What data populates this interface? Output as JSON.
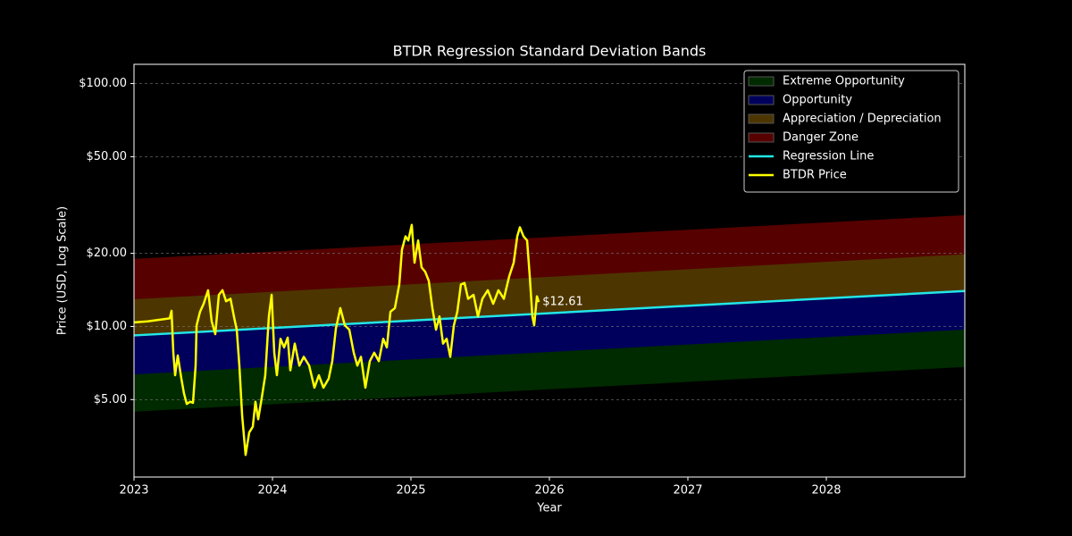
{
  "chart_data": {
    "type": "line",
    "title": "BTDR Regression Standard Deviation Bands",
    "x_label": "Year",
    "y_label": "Price (USD, Log Scale)",
    "xlim": [
      2023,
      2029
    ],
    "xticks": [
      2023,
      2024,
      2025,
      2026,
      2027,
      2028
    ],
    "ylim": [
      2.4,
      120
    ],
    "y_log": true,
    "yticks": [
      {
        "value": 5,
        "label": "$5.00"
      },
      {
        "value": 10,
        "label": "$10.00"
      },
      {
        "value": 20,
        "label": "$20.00"
      },
      {
        "value": 50,
        "label": "$50.00"
      },
      {
        "value": 100,
        "label": "$100.00"
      }
    ],
    "grid": true,
    "legend": "upper right",
    "bands": [
      {
        "name": "Extreme Opportunity",
        "color": "#002a00",
        "x": [
          2023,
          2029
        ],
        "lower": [
          4.48,
          6.84
        ],
        "upper": [
          6.38,
          9.75
        ]
      },
      {
        "name": "Opportunity",
        "color": "#00005c",
        "x": [
          2023,
          2029
        ],
        "lower": [
          6.38,
          9.75
        ],
        "upper": [
          9.19,
          14.0
        ]
      },
      {
        "name": "Appreciation / Depreciation",
        "color": "#4d3500",
        "x": [
          2023,
          2029
        ],
        "lower": [
          9.19,
          14.0
        ],
        "upper": [
          13.0,
          19.9
        ]
      },
      {
        "name": "Danger Zone",
        "color": "#560000",
        "x": [
          2023,
          2029
        ],
        "lower": [
          13.0,
          19.9
        ],
        "upper": [
          18.9,
          28.6
        ]
      }
    ],
    "series": [
      {
        "name": "Regression Line",
        "color": "#22e6e6",
        "x": [
          2023,
          2029
        ],
        "values": [
          9.19,
          14.0
        ]
      },
      {
        "name": "BTDR Price",
        "color": "#ffff00",
        "x": [
          2023.0,
          2023.097,
          2023.258,
          2023.271,
          2023.284,
          2023.297,
          2023.316,
          2023.342,
          2023.361,
          2023.381,
          2023.406,
          2023.426,
          2023.445,
          2023.452,
          2023.477,
          2023.503,
          2023.535,
          2023.561,
          2023.587,
          2023.613,
          2023.639,
          2023.665,
          2023.697,
          2023.723,
          2023.742,
          2023.761,
          2023.781,
          2023.806,
          2023.832,
          2023.858,
          2023.877,
          2023.897,
          2023.923,
          2023.948,
          2023.974,
          2023.994,
          2024.013,
          2024.032,
          2024.058,
          2024.084,
          2024.11,
          2024.129,
          2024.161,
          2024.194,
          2024.226,
          2024.265,
          2024.303,
          2024.335,
          2024.368,
          2024.406,
          2024.432,
          2024.458,
          2024.49,
          2024.523,
          2024.555,
          2024.587,
          2024.613,
          2024.639,
          2024.671,
          2024.703,
          2024.735,
          2024.768,
          2024.8,
          2024.826,
          2024.852,
          2024.884,
          2024.916,
          2024.935,
          2024.961,
          2024.981,
          2025.006,
          2025.026,
          2025.052,
          2025.077,
          2025.103,
          2025.129,
          2025.155,
          2025.181,
          2025.206,
          2025.232,
          2025.258,
          2025.284,
          2025.31,
          2025.335,
          2025.361,
          2025.387,
          2025.413,
          2025.452,
          2025.484,
          2025.516,
          2025.555,
          2025.594,
          2025.632,
          2025.671,
          2025.71,
          2025.742,
          2025.768,
          2025.787,
          2025.813,
          2025.839,
          2025.858,
          2025.877,
          2025.89,
          2025.91,
          2025.923
        ],
        "values": [
          10.4,
          10.5,
          10.8,
          11.6,
          7.8,
          6.3,
          7.6,
          6.1,
          5.3,
          4.8,
          4.9,
          4.85,
          6.9,
          10.1,
          11.5,
          12.4,
          14.1,
          10.5,
          9.3,
          13.5,
          14.1,
          12.7,
          13.0,
          10.9,
          9.7,
          6.9,
          4.3,
          2.96,
          3.66,
          3.87,
          4.9,
          4.15,
          5.1,
          6.3,
          11.0,
          13.5,
          7.8,
          6.3,
          8.9,
          8.2,
          9.0,
          6.6,
          8.5,
          6.9,
          7.5,
          6.9,
          5.6,
          6.3,
          5.6,
          6.1,
          7.2,
          9.8,
          11.9,
          10.1,
          9.7,
          7.8,
          6.9,
          7.5,
          5.6,
          7.2,
          7.8,
          7.2,
          8.9,
          8.2,
          11.5,
          11.9,
          14.9,
          20.7,
          23.5,
          22.6,
          26.2,
          18.3,
          22.6,
          17.5,
          16.8,
          15.4,
          11.9,
          9.7,
          11.0,
          8.5,
          8.9,
          7.5,
          10.1,
          11.5,
          14.9,
          15.1,
          13.0,
          13.5,
          11.0,
          13.0,
          14.1,
          12.4,
          14.1,
          13.0,
          16.1,
          18.3,
          23.5,
          25.6,
          23.5,
          22.6,
          16.1,
          11.0,
          10.1,
          13.3,
          12.61
        ]
      }
    ],
    "annotations": [
      {
        "text": "$12.61",
        "x": 2025.95,
        "y": 12.61
      }
    ]
  }
}
